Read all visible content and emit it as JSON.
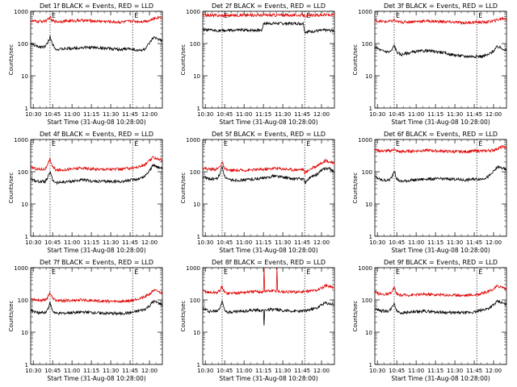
{
  "colors": {
    "events": "#000000",
    "lld": "#e00000",
    "axis": "#000000"
  },
  "chart_data": [
    {
      "type": "line",
      "title": "Det 1f BLACK = Events, RED = LLD",
      "xlabel": "Start Time (31-Aug-08 10:28:00)",
      "ylabel": "Counts/sec",
      "x_ticks": [
        "10:30",
        "10:45",
        "11:00",
        "11:15",
        "11:30",
        "11:45",
        "12:00"
      ],
      "y_ticks": [
        "1",
        "10",
        "100",
        "1000"
      ],
      "yscale": "log",
      "ylim": [
        1,
        1000
      ],
      "xlim_minutes": [
        0,
        102
      ],
      "markers": [
        {
          "label": "E",
          "at": 15
        },
        {
          "label": "E",
          "at": 79
        }
      ],
      "series": [
        {
          "color": "#000000",
          "x": [
            0,
            5,
            11,
            13,
            15,
            17,
            20,
            30,
            40,
            50,
            60,
            70,
            78,
            83,
            88,
            92,
            95,
            99,
            102
          ],
          "y": [
            100,
            80,
            80,
            100,
            160,
            95,
            65,
            70,
            75,
            75,
            70,
            65,
            70,
            60,
            65,
            100,
            150,
            140,
            120
          ]
        },
        {
          "color": "#e00000",
          "x": [
            0,
            5,
            11,
            14,
            15,
            16,
            20,
            30,
            40,
            50,
            60,
            70,
            78,
            85,
            92,
            96,
            99,
            102
          ],
          "y": [
            500,
            480,
            500,
            560,
            700,
            520,
            480,
            500,
            520,
            500,
            480,
            460,
            500,
            480,
            520,
            600,
            660,
            640
          ]
        }
      ]
    },
    {
      "type": "line",
      "title": "Det 2f BLACK = Events, RED = LLD",
      "xlabel": "Start Time (31-Aug-08 10:28:00)",
      "ylabel": "Counts/sec",
      "x_ticks": [
        "10:30",
        "10:45",
        "11:00",
        "11:15",
        "11:30",
        "11:45",
        "12:00"
      ],
      "y_ticks": [
        "1",
        "10",
        "100",
        "1000"
      ],
      "yscale": "log",
      "ylim": [
        1,
        1000
      ],
      "xlim_minutes": [
        0,
        102
      ],
      "markers": [
        {
          "label": "E",
          "at": 15
        },
        {
          "label": "E",
          "at": 79
        }
      ],
      "series": [
        {
          "color": "#000000",
          "x": [
            0,
            15,
            30,
            46,
            47,
            60,
            78,
            79,
            85,
            95,
            102
          ],
          "y": [
            260,
            250,
            260,
            260,
            420,
            420,
            420,
            230,
            240,
            260,
            250
          ]
        },
        {
          "color": "#e00000",
          "x": [
            0,
            15,
            30,
            46,
            60,
            78,
            79,
            90,
            102
          ],
          "y": [
            760,
            740,
            760,
            760,
            760,
            760,
            720,
            760,
            780
          ]
        }
      ]
    },
    {
      "type": "line",
      "title": "Det 3f BLACK = Events, RED = LLD",
      "xlabel": "Start Time (31-Aug-08 10:28:00)",
      "ylabel": "Counts/sec",
      "x_ticks": [
        "10:30",
        "10:45",
        "11:00",
        "11:15",
        "11:30",
        "11:45",
        "12:00"
      ],
      "y_ticks": [
        "1",
        "10",
        "100",
        "1000"
      ],
      "yscale": "log",
      "ylim": [
        1,
        1000
      ],
      "xlim_minutes": [
        0,
        102
      ],
      "markers": [
        {
          "label": "E",
          "at": 15
        },
        {
          "label": "E",
          "at": 79
        }
      ],
      "series": [
        {
          "color": "#000000",
          "x": [
            0,
            5,
            11,
            13,
            15,
            17,
            20,
            30,
            40,
            50,
            60,
            70,
            78,
            83,
            88,
            92,
            95,
            99,
            102
          ],
          "y": [
            80,
            60,
            55,
            60,
            90,
            55,
            45,
            55,
            60,
            55,
            45,
            40,
            40,
            40,
            45,
            60,
            80,
            70,
            60
          ]
        },
        {
          "color": "#e00000",
          "x": [
            0,
            5,
            11,
            14,
            15,
            16,
            20,
            30,
            40,
            50,
            60,
            70,
            78,
            85,
            92,
            96,
            99,
            102
          ],
          "y": [
            520,
            480,
            480,
            500,
            560,
            480,
            460,
            480,
            500,
            480,
            460,
            440,
            460,
            460,
            500,
            560,
            600,
            580
          ]
        }
      ]
    },
    {
      "type": "line",
      "title": "Det 4f BLACK = Events, RED = LLD",
      "xlabel": "Start Time (31-Aug-08 10:28:00)",
      "ylabel": "Counts/sec",
      "x_ticks": [
        "10:30",
        "10:45",
        "11:00",
        "11:15",
        "11:30",
        "11:45",
        "12:00"
      ],
      "y_ticks": [
        "1",
        "10",
        "100",
        "1000"
      ],
      "yscale": "log",
      "ylim": [
        1,
        1000
      ],
      "xlim_minutes": [
        0,
        102
      ],
      "markers": [
        {
          "label": "E",
          "at": 15
        },
        {
          "label": "E",
          "at": 79
        }
      ],
      "series": [
        {
          "color": "#000000",
          "x": [
            0,
            5,
            11,
            13,
            15,
            17,
            20,
            30,
            40,
            50,
            60,
            70,
            78,
            83,
            88,
            92,
            95,
            99,
            102
          ],
          "y": [
            60,
            50,
            50,
            60,
            100,
            55,
            45,
            50,
            55,
            50,
            50,
            50,
            55,
            60,
            70,
            110,
            160,
            140,
            120
          ]
        },
        {
          "color": "#e00000",
          "x": [
            0,
            5,
            11,
            13,
            15,
            17,
            20,
            30,
            40,
            50,
            60,
            70,
            78,
            83,
            88,
            92,
            95,
            99,
            102
          ],
          "y": [
            140,
            120,
            120,
            150,
            250,
            140,
            110,
            120,
            130,
            120,
            120,
            120,
            130,
            140,
            160,
            220,
            280,
            250,
            220
          ]
        }
      ]
    },
    {
      "type": "line",
      "title": "Det 5f BLACK = Events, RED = LLD",
      "xlabel": "Start Time (31-Aug-08 10:28:00)",
      "ylabel": "Counts/sec",
      "x_ticks": [
        "10:30",
        "10:45",
        "11:00",
        "11:15",
        "11:30",
        "11:45",
        "12:00"
      ],
      "y_ticks": [
        "1",
        "10",
        "100",
        "1000"
      ],
      "yscale": "log",
      "ylim": [
        1,
        1000
      ],
      "xlim_minutes": [
        0,
        102
      ],
      "markers": [
        {
          "label": "E",
          "at": 15
        },
        {
          "label": "E",
          "at": 79
        }
      ],
      "series": [
        {
          "color": "#000000",
          "x": [
            0,
            5,
            11,
            13,
            15,
            17,
            20,
            30,
            40,
            50,
            55,
            60,
            70,
            78,
            79,
            83,
            88,
            92,
            95,
            99,
            102
          ],
          "y": [
            70,
            60,
            60,
            80,
            150,
            70,
            55,
            55,
            60,
            65,
            75,
            70,
            60,
            60,
            45,
            65,
            80,
            110,
            130,
            120,
            100
          ]
        },
        {
          "color": "#e00000",
          "x": [
            0,
            5,
            11,
            13,
            15,
            17,
            20,
            30,
            40,
            50,
            55,
            60,
            70,
            78,
            79,
            83,
            88,
            92,
            95,
            99,
            102
          ],
          "y": [
            130,
            120,
            120,
            140,
            200,
            120,
            110,
            110,
            115,
            120,
            130,
            125,
            115,
            120,
            90,
            120,
            150,
            190,
            220,
            200,
            170
          ]
        }
      ]
    },
    {
      "type": "line",
      "title": "Det 6f BLACK = Events, RED = LLD",
      "xlabel": "Start Time (31-Aug-08 10:28:00)",
      "ylabel": "Counts/sec",
      "x_ticks": [
        "10:30",
        "10:45",
        "11:00",
        "11:15",
        "11:30",
        "11:45",
        "12:00"
      ],
      "y_ticks": [
        "1",
        "10",
        "100",
        "1000"
      ],
      "yscale": "log",
      "ylim": [
        1,
        1000
      ],
      "xlim_minutes": [
        0,
        102
      ],
      "markers": [
        {
          "label": "E",
          "at": 15
        },
        {
          "label": "E",
          "at": 79
        }
      ],
      "series": [
        {
          "color": "#000000",
          "x": [
            0,
            5,
            11,
            13,
            15,
            17,
            20,
            30,
            40,
            50,
            60,
            70,
            78,
            83,
            88,
            92,
            95,
            99,
            102
          ],
          "y": [
            70,
            55,
            55,
            65,
            110,
            60,
            50,
            55,
            60,
            60,
            60,
            55,
            60,
            60,
            70,
            100,
            140,
            130,
            110
          ]
        },
        {
          "color": "#e00000",
          "x": [
            0,
            5,
            11,
            14,
            15,
            16,
            20,
            30,
            40,
            50,
            60,
            70,
            78,
            85,
            92,
            96,
            99,
            102
          ],
          "y": [
            480,
            440,
            440,
            470,
            540,
            440,
            420,
            440,
            460,
            440,
            420,
            420,
            440,
            440,
            470,
            540,
            600,
            560
          ]
        }
      ]
    },
    {
      "type": "line",
      "title": "Det 7f BLACK = Events, RED = LLD",
      "xlabel": "Start Time (31-Aug-08 10:28:00)",
      "ylabel": "Counts/sec",
      "x_ticks": [
        "10:30",
        "10:45",
        "11:00",
        "11:15",
        "11:30",
        "11:45",
        "12:00"
      ],
      "y_ticks": [
        "1",
        "10",
        "100",
        "1000"
      ],
      "yscale": "log",
      "ylim": [
        1,
        1000
      ],
      "xlim_minutes": [
        0,
        102
      ],
      "markers": [
        {
          "label": "E",
          "at": 15
        },
        {
          "label": "E",
          "at": 79
        }
      ],
      "series": [
        {
          "color": "#000000",
          "x": [
            0,
            5,
            11,
            13,
            15,
            17,
            20,
            30,
            40,
            50,
            60,
            70,
            78,
            83,
            88,
            92,
            95,
            99,
            102
          ],
          "y": [
            50,
            40,
            40,
            50,
            80,
            45,
            38,
            40,
            42,
            40,
            38,
            38,
            40,
            45,
            50,
            65,
            90,
            80,
            70
          ]
        },
        {
          "color": "#e00000",
          "x": [
            0,
            5,
            11,
            13,
            15,
            17,
            20,
            30,
            40,
            50,
            60,
            70,
            78,
            83,
            88,
            92,
            95,
            99,
            102
          ],
          "y": [
            110,
            100,
            100,
            120,
            170,
            110,
            95,
            95,
            100,
            95,
            90,
            90,
            95,
            110,
            120,
            150,
            200,
            180,
            160
          ]
        }
      ]
    },
    {
      "type": "line",
      "title": "Det 8f BLACK = Events, RED = LLD",
      "xlabel": "Start Time (31-Aug-08 10:28:00)",
      "ylabel": "Counts/sec",
      "x_ticks": [
        "10:30",
        "10:45",
        "11:00",
        "11:15",
        "11:30",
        "11:45",
        "12:00"
      ],
      "y_ticks": [
        "1",
        "10",
        "100",
        "1000"
      ],
      "yscale": "log",
      "ylim": [
        1,
        1000
      ],
      "xlim_minutes": [
        0,
        102
      ],
      "markers": [
        {
          "label": "E",
          "at": 15
        },
        {
          "label": "E",
          "at": 79
        }
      ],
      "series": [
        {
          "color": "#000000",
          "x": [
            0,
            5,
            11,
            13,
            15,
            17,
            20,
            30,
            40,
            47,
            47.5,
            48,
            50,
            58,
            60,
            70,
            78,
            83,
            88,
            92,
            95,
            99,
            102
          ],
          "y": [
            55,
            45,
            45,
            55,
            90,
            50,
            42,
            45,
            48,
            48,
            16,
            48,
            50,
            50,
            48,
            45,
            45,
            50,
            55,
            70,
            80,
            75,
            70
          ]
        },
        {
          "color": "#e00000",
          "x": [
            0,
            5,
            11,
            13,
            15,
            17,
            20,
            30,
            40,
            47,
            47.5,
            48,
            50,
            57,
            57.5,
            58,
            60,
            70,
            78,
            83,
            88,
            92,
            95,
            99,
            102
          ],
          "y": [
            190,
            170,
            170,
            190,
            260,
            170,
            160,
            170,
            180,
            180,
            1000,
            180,
            190,
            190,
            1000,
            190,
            180,
            175,
            180,
            190,
            200,
            230,
            280,
            260,
            230
          ]
        }
      ]
    },
    {
      "type": "line",
      "title": "Det 9f BLACK = Events, RED = LLD",
      "xlabel": "Start Time (31-Aug-08 10:28:00)",
      "ylabel": "Counts/sec",
      "x_ticks": [
        "10:30",
        "10:45",
        "11:00",
        "11:15",
        "11:30",
        "11:45",
        "12:00"
      ],
      "y_ticks": [
        "1",
        "10",
        "100",
        "1000"
      ],
      "yscale": "log",
      "ylim": [
        1,
        1000
      ],
      "xlim_minutes": [
        0,
        102
      ],
      "markers": [
        {
          "label": "E",
          "at": 15
        },
        {
          "label": "E",
          "at": 79
        }
      ],
      "series": [
        {
          "color": "#000000",
          "x": [
            0,
            5,
            11,
            13,
            15,
            17,
            20,
            30,
            40,
            50,
            60,
            70,
            78,
            83,
            88,
            92,
            95,
            99,
            102
          ],
          "y": [
            55,
            45,
            45,
            55,
            80,
            45,
            40,
            42,
            45,
            42,
            40,
            40,
            42,
            48,
            55,
            70,
            90,
            80,
            70
          ]
        },
        {
          "color": "#e00000",
          "x": [
            0,
            5,
            11,
            13,
            15,
            17,
            20,
            30,
            40,
            50,
            60,
            70,
            78,
            83,
            88,
            92,
            95,
            99,
            102
          ],
          "y": [
            170,
            150,
            150,
            170,
            240,
            150,
            140,
            145,
            150,
            145,
            140,
            140,
            145,
            160,
            180,
            220,
            270,
            250,
            220
          ]
        }
      ]
    }
  ]
}
